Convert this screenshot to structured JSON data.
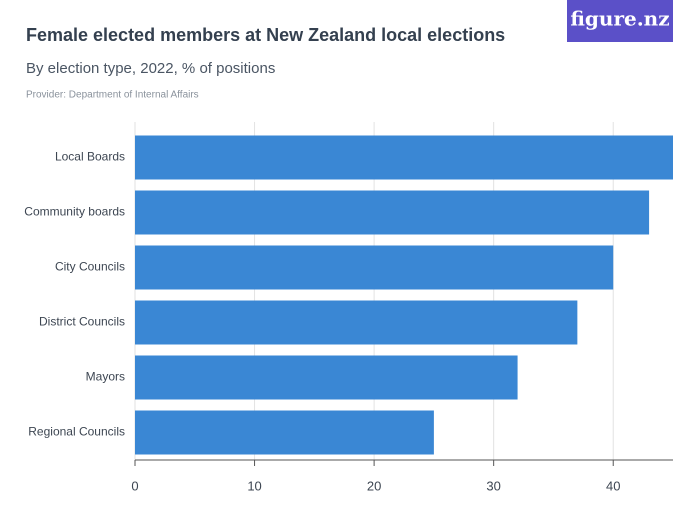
{
  "brand": "figure.nz",
  "chart_data": {
    "type": "barh",
    "title": "Female elected members at New Zealand local elections",
    "subtitle": "By election type, 2022, % of positions",
    "source": "Provider: Department of Internal Affairs",
    "categories": [
      "Local Boards",
      "Community boards",
      "City Councils",
      "District Councils",
      "Mayors",
      "Regional Councils"
    ],
    "values": [
      45,
      43,
      40,
      37,
      32,
      25
    ],
    "color": "#3a87d4",
    "xlim": [
      0,
      45
    ],
    "xticks": [
      0,
      10,
      20,
      30,
      40
    ],
    "grid": true
  }
}
